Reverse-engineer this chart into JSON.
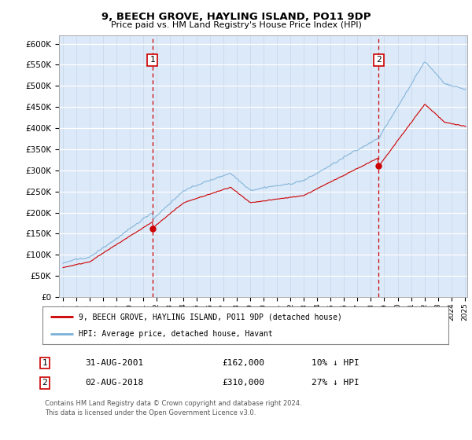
{
  "title": "9, BEECH GROVE, HAYLING ISLAND, PO11 9DP",
  "subtitle": "Price paid vs. HM Land Registry's House Price Index (HPI)",
  "ylim": [
    0,
    620000
  ],
  "yticks": [
    0,
    50000,
    100000,
    150000,
    200000,
    250000,
    300000,
    350000,
    400000,
    450000,
    500000,
    550000,
    600000
  ],
  "plot_bg": "#dce9f8",
  "hpi_color": "#7ab0d8",
  "price_color": "#cc0000",
  "vline_color": "#cc0000",
  "legend_label_price": "9, BEECH GROVE, HAYLING ISLAND, PO11 9DP (detached house)",
  "legend_label_hpi": "HPI: Average price, detached house, Havant",
  "transaction1_date": "31-AUG-2001",
  "transaction1_price": "£162,000",
  "transaction1_hpi": "10% ↓ HPI",
  "transaction2_date": "02-AUG-2018",
  "transaction2_price": "£310,000",
  "transaction2_hpi": "27% ↓ HPI",
  "footnote1": "Contains HM Land Registry data © Crown copyright and database right 2024.",
  "footnote2": "This data is licensed under the Open Government Licence v3.0.",
  "transaction1_year": 2001.67,
  "transaction2_year": 2018.58,
  "price1": 162000,
  "price2": 310000,
  "xmin": 1995.0,
  "xmax": 2025.2
}
